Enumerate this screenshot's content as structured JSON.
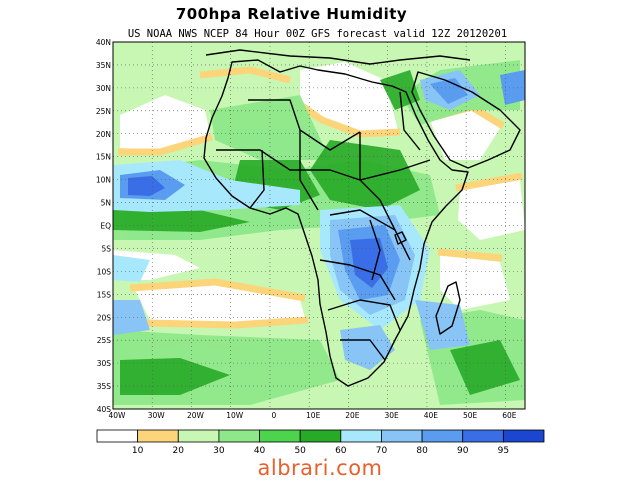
{
  "title": "700hpa Relative Humidity",
  "subtitle": "US NOAA NWS NCEP 84 Hour 00Z GFS forecast valid 12Z 20120201",
  "map": {
    "lat_labels": [
      "40N",
      "35N",
      "30N",
      "25N",
      "20N",
      "15N",
      "10N",
      "5N",
      "EQ",
      "5S",
      "10S",
      "15S",
      "20S",
      "25S",
      "30S",
      "35S",
      "40S"
    ],
    "lon_labels": [
      "40W",
      "30W",
      "20W",
      "10W",
      "0",
      "10E",
      "20E",
      "30E",
      "40E",
      "50E",
      "60E"
    ]
  },
  "colorbar": {
    "labels": [
      "10",
      "20",
      "30",
      "40",
      "50",
      "60",
      "70",
      "80",
      "90",
      "95"
    ],
    "colors": [
      "#ffffff",
      "#fcd57a",
      "#c8f7b4",
      "#8ee88a",
      "#4cd44c",
      "#27aa27",
      "#a8e8fc",
      "#88c4f6",
      "#5a9cf0",
      "#3a6ee6",
      "#1a46d2"
    ]
  },
  "watermark": "albrari.com"
}
